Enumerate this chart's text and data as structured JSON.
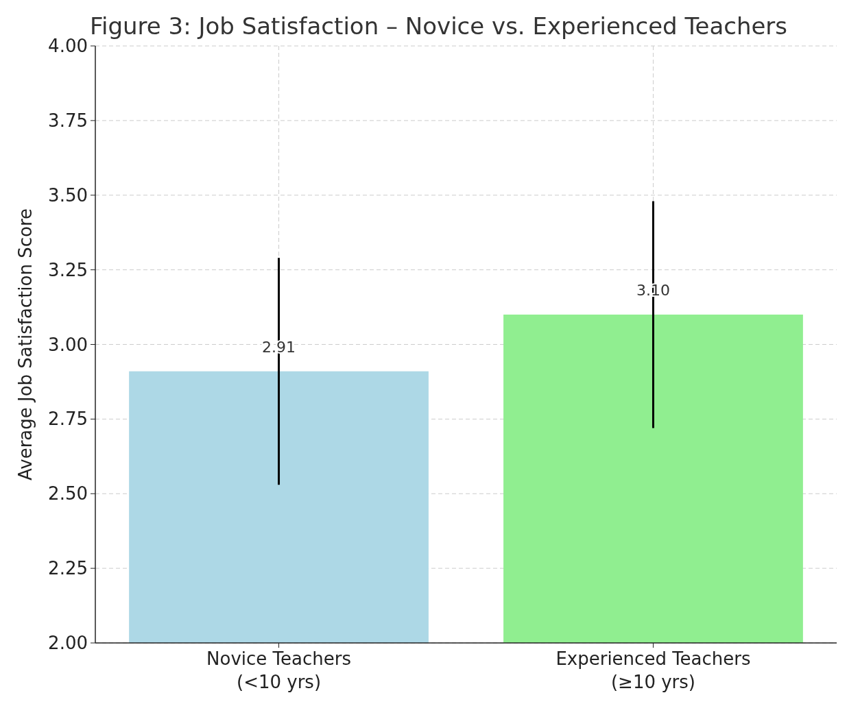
{
  "chart_data": {
    "type": "bar",
    "title": "Figure 3: Job Satisfaction – Novice vs. Experienced Teachers",
    "ylabel": "Average Job Satisfaction Score",
    "categories": [
      "Novice Teachers\n(<10 yrs)",
      "Experienced Teachers\n(≥10 yrs)"
    ],
    "values": [
      2.91,
      3.1
    ],
    "colors": [
      "#add8e6",
      "#90ee90"
    ],
    "errors": [
      0.38,
      0.38
    ],
    "ylim": [
      2,
      4
    ],
    "yticks": [
      {
        "value": 2,
        "label": "2.00"
      },
      {
        "value": 2.25,
        "label": "2.25"
      },
      {
        "value": 2.5,
        "label": "2.50"
      },
      {
        "value": 2.75,
        "label": "2.75"
      },
      {
        "value": 3,
        "label": "3.00"
      },
      {
        "value": 3.25,
        "label": "3.25"
      },
      {
        "value": 3.5,
        "label": "3.50"
      },
      {
        "value": 3.75,
        "label": "3.75"
      },
      {
        "value": 4,
        "label": "4.00"
      }
    ],
    "value_labels": [
      "2.91",
      "3.10"
    ],
    "grid": true
  }
}
